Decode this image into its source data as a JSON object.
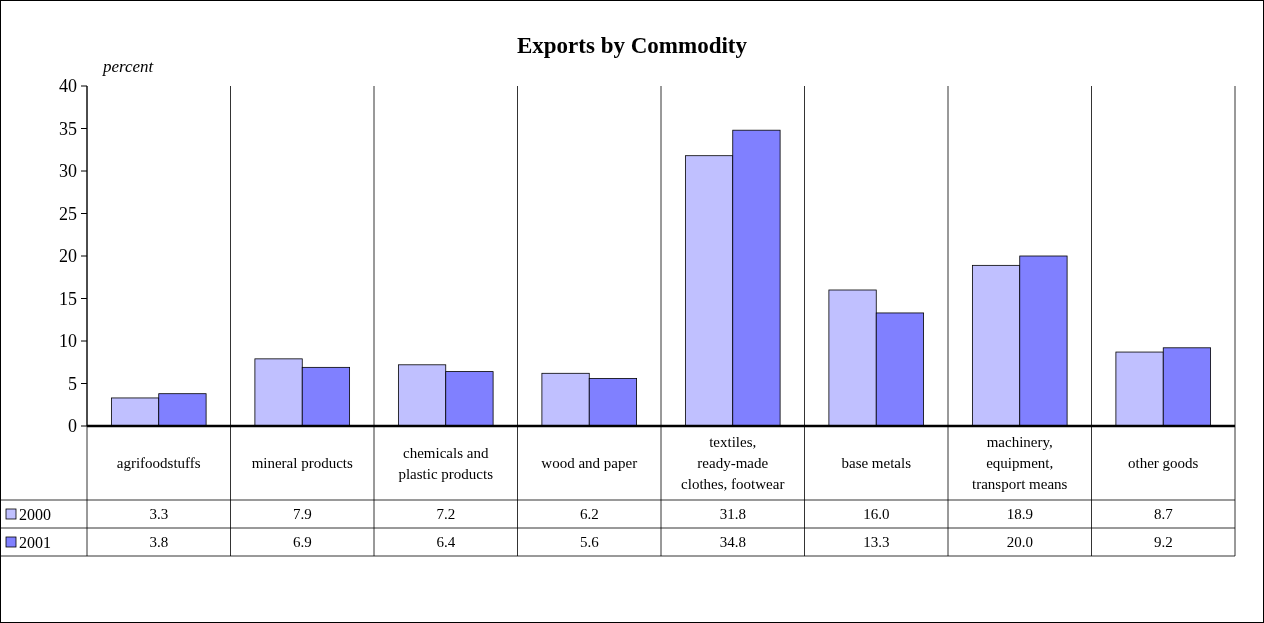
{
  "chart_data": {
    "type": "bar",
    "title": "Exports by Commodity",
    "ylabel": "percent",
    "categories": [
      "agrifoodstuffs",
      "mineral products",
      "chemicals and plastic products",
      "wood and paper",
      "textiles, ready-made clothes, footwear",
      "base metals",
      "machinery, equipment, transport means",
      "other goods"
    ],
    "series": [
      {
        "name": "2000",
        "color": "#c0c0ff",
        "values": [
          3.3,
          7.9,
          7.2,
          6.2,
          31.8,
          16.0,
          18.9,
          8.7
        ],
        "value_labels": [
          "3.3",
          "7.9",
          "7.2",
          "6.2",
          "31.8",
          "16.0",
          "18.9",
          "8.7"
        ]
      },
      {
        "name": "2001",
        "color": "#8080ff",
        "values": [
          3.8,
          6.9,
          6.4,
          5.6,
          34.8,
          13.3,
          20.0,
          9.2
        ],
        "value_labels": [
          "3.8",
          "6.9",
          "6.4",
          "5.6",
          "34.8",
          "13.3",
          "20.0",
          "9.2"
        ]
      }
    ],
    "ylim": [
      0,
      40
    ],
    "yticks": [
      0,
      5,
      10,
      15,
      20,
      25,
      30,
      35,
      40
    ],
    "grid": "x",
    "legend": "bottom left"
  }
}
